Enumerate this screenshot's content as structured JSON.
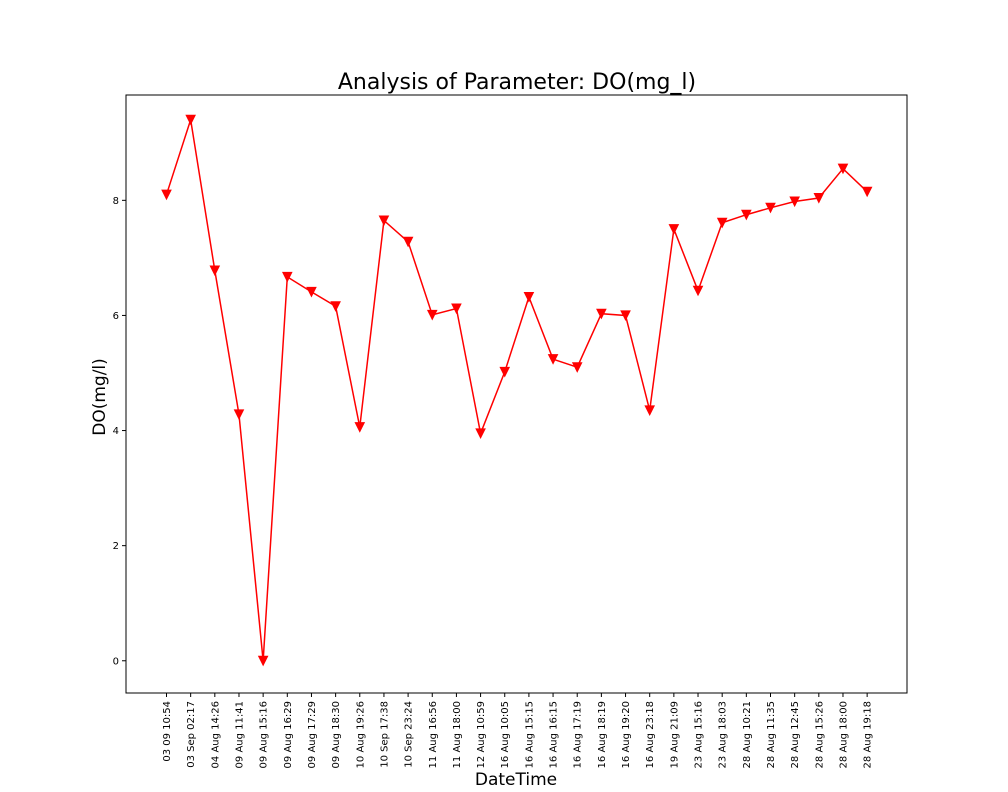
{
  "chart_data": {
    "type": "line",
    "title": "Analysis of Parameter: DO(mg_l)",
    "xlabel": "DateTime",
    "ylabel": "DO(mg/l)",
    "ylim": [
      -0.56,
      9.83
    ],
    "yticks": [
      0,
      2,
      4,
      6,
      8
    ],
    "line_color": "#ff0000",
    "marker": "triangle-down",
    "grid": false,
    "legend": "none",
    "categories": [
      "03 09 10:54",
      "03 Sep 02:17",
      "04 Aug 14:26",
      "09 Aug 11:41",
      "09 Aug 15:16",
      "09 Aug 16:29",
      "09 Aug 17:29",
      "09 Aug 18:30",
      "10 Aug 19:26",
      "10 Sep 17:38",
      "10 Sep 23:24",
      "11 Aug 16:56",
      "11 Aug 18:00",
      "12 Aug 10:59",
      "16 Aug 10:05",
      "16 Aug 15:15",
      "16 Aug 16:15",
      "16 Aug 17:19",
      "16 Aug 18:19",
      "16 Aug 19:20",
      "16 Aug 23:18",
      "19 Aug 21:09",
      "23 Aug 15:16",
      "23 Aug 18:03",
      "28 Aug 10:21",
      "28 Aug 11:35",
      "28 Aug 12:45",
      "28 Aug 15:26",
      "28 Aug 18:00",
      "28 Aug 19:18"
    ],
    "series": [
      {
        "values": [
          8.1,
          9.4,
          6.78,
          4.28,
          0.0,
          6.67,
          6.41,
          6.16,
          4.06,
          7.65,
          7.28,
          6.01,
          6.12,
          3.95,
          5.02,
          6.32,
          5.24,
          5.1,
          6.03,
          6.0,
          4.35,
          7.5,
          6.43,
          7.61,
          7.75,
          7.87,
          7.98,
          8.04,
          8.55,
          8.15
        ]
      }
    ]
  }
}
